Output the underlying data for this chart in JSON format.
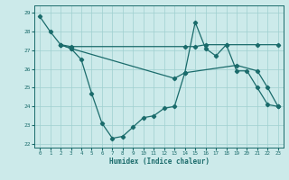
{
  "xlabel": "Humidex (Indice chaleur)",
  "xlim": [
    -0.5,
    23.5
  ],
  "ylim": [
    21.8,
    29.4
  ],
  "yticks": [
    22,
    23,
    24,
    25,
    26,
    27,
    28,
    29
  ],
  "xticks": [
    0,
    1,
    2,
    3,
    4,
    5,
    6,
    7,
    8,
    9,
    10,
    11,
    12,
    13,
    14,
    15,
    16,
    17,
    18,
    19,
    20,
    21,
    22,
    23
  ],
  "bg_color": "#cceaea",
  "line_color": "#1a6b6b",
  "grid_color": "#9fd0d0",
  "line1_x": [
    0,
    1,
    2,
    3,
    4,
    5,
    6,
    7,
    8,
    9,
    10,
    11,
    12,
    13,
    14,
    15,
    16,
    17,
    18,
    19,
    20,
    21,
    22,
    23
  ],
  "line1_y": [
    28.8,
    28.0,
    27.3,
    27.1,
    26.5,
    24.7,
    23.1,
    22.3,
    22.4,
    22.9,
    23.4,
    23.5,
    23.9,
    24.0,
    25.8,
    28.5,
    27.1,
    26.7,
    27.3,
    25.9,
    25.9,
    25.0,
    24.1,
    24.0
  ],
  "line2_x": [
    2,
    3,
    14,
    15,
    16,
    18,
    21,
    23
  ],
  "line2_y": [
    27.3,
    27.2,
    27.2,
    27.2,
    27.3,
    27.3,
    27.3,
    27.3
  ],
  "line3_x": [
    2,
    3,
    13,
    14,
    19,
    21,
    22,
    23
  ],
  "line3_y": [
    27.3,
    27.1,
    25.5,
    25.8,
    26.2,
    25.9,
    25.0,
    24.0
  ]
}
